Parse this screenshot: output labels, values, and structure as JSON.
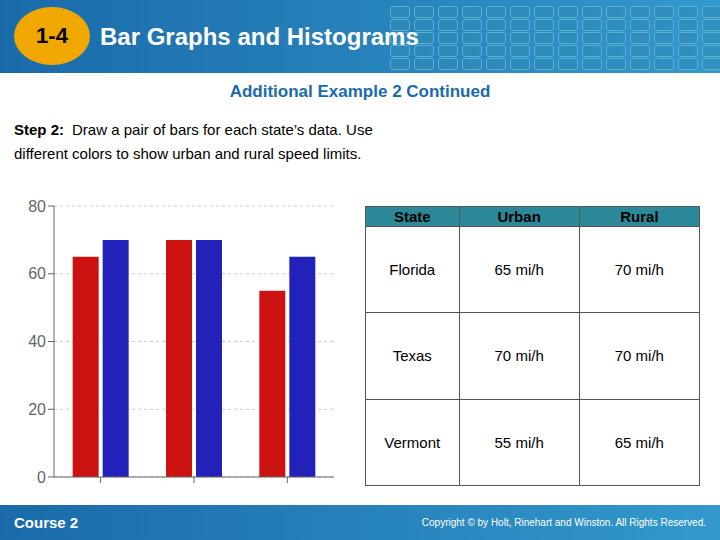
{
  "chart_data": {
    "type": "bar",
    "title": "Bar Graphs and Histograms",
    "subtitle": "Additional Example 2 Continued",
    "annotations": [
      "1-4",
      "Step 2:",
      "Draw a pair of bars for each state’s data. Use",
      "different colors to show urban and rural speed limits.",
      "Course 2",
      "Copyright © by Holt, Rinehart and Winston. All Rights Reserved."
    ],
    "categories": [
      null,
      null,
      null
    ],
    "series": [
      {
        "name": "Urban",
        "color": "#cc1111",
        "values": [
          65,
          70,
          55
        ]
      },
      {
        "name": "Rural",
        "color": "#2222bb",
        "values": [
          70,
          70,
          65
        ]
      }
    ],
    "ylim": [
      0,
      80
    ],
    "yticks": [
      0,
      20,
      40,
      60,
      80
    ],
    "grid": true,
    "tick_labels": "y",
    "table": {
      "headers": [
        "State",
        "Urban",
        "Rural"
      ],
      "rows": [
        [
          "Florida",
          "65 mi/h",
          "70 mi/h"
        ],
        [
          "Texas",
          "70 mi/h",
          "70 mi/h"
        ],
        [
          "Vermont",
          "55 mi/h",
          "65 mi/h"
        ]
      ]
    }
  }
}
